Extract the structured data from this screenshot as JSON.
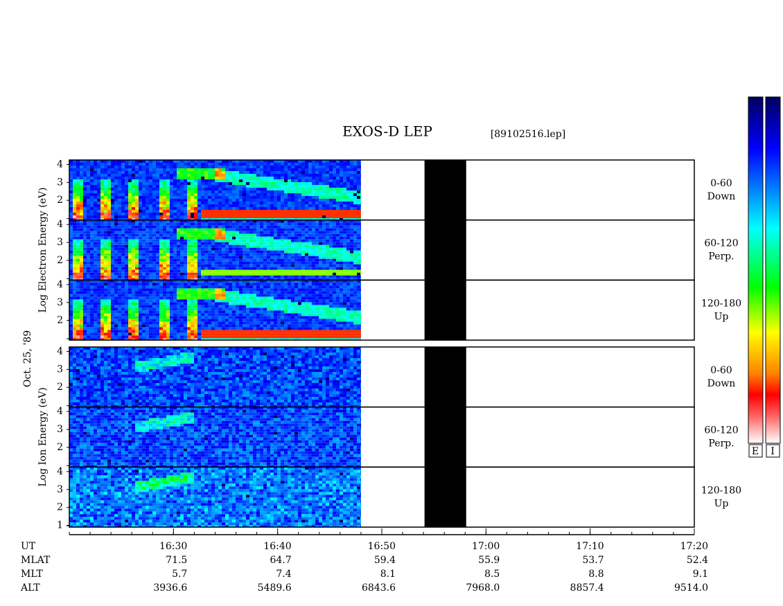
{
  "chart_data": {
    "type": "spectrogram",
    "title": "EXOS-D LEP",
    "file": "[89102516.lep]",
    "date": "Oct. 25, '89",
    "xlim": [
      980,
      1040
    ],
    "xticks": [
      {
        "value": 990,
        "label": "16:30"
      },
      {
        "value": 1000,
        "label": "16:40"
      },
      {
        "value": 1010,
        "label": "16:50"
      },
      {
        "value": 1020,
        "label": "17:00"
      },
      {
        "value": 1030,
        "label": "17:10"
      },
      {
        "value": 1040,
        "label": "17:20"
      }
    ],
    "x_label": "UT",
    "data_end": 1008,
    "gap": [
      1014.1,
      1018.1
    ],
    "groups": [
      {
        "ylabel": "Log Electron Energy (eV)",
        "panels": [
          {
            "label": [
              "0-60",
              "Down"
            ],
            "ylim": [
              0.9,
              4.25
            ],
            "yticks": [
              2,
              3,
              4
            ]
          },
          {
            "label": [
              "60-120",
              "Perp."
            ],
            "ylim": [
              0.9,
              4.25
            ],
            "yticks": [
              2,
              3,
              4
            ]
          },
          {
            "label": [
              "120-180",
              "Up"
            ],
            "ylim": [
              0.9,
              4.25
            ],
            "yticks": [
              2,
              3,
              4
            ]
          }
        ]
      },
      {
        "ylabel": "Log Ion Energy (eV)",
        "panels": [
          {
            "label": [
              "0-60",
              "Down"
            ],
            "ylim": [
              0.9,
              4.25
            ],
            "yticks": [
              2,
              3,
              4
            ]
          },
          {
            "label": [
              "60-120",
              "Perp."
            ],
            "ylim": [
              0.9,
              4.25
            ],
            "yticks": [
              2,
              3,
              4
            ]
          },
          {
            "label": [
              "120-180",
              "Up"
            ],
            "ylim": [
              0.9,
              4.25
            ],
            "yticks": [
              1,
              2,
              3,
              4
            ]
          }
        ]
      }
    ],
    "orbit": [
      {
        "name": "MLAT",
        "values": [
          "71.5",
          "64.7",
          "59.4",
          "55.9",
          "53.7",
          "52.4"
        ]
      },
      {
        "name": "MLT",
        "values": [
          "5.7",
          "7.4",
          "8.1",
          "8.5",
          "8.8",
          "9.1"
        ]
      },
      {
        "name": "ALT",
        "values": [
          "3936.6",
          "5489.6",
          "6843.6",
          "7968.0",
          "8857.4",
          "9514.0"
        ]
      }
    ],
    "colorbar": {
      "labels": [
        "E",
        "I"
      ]
    }
  }
}
